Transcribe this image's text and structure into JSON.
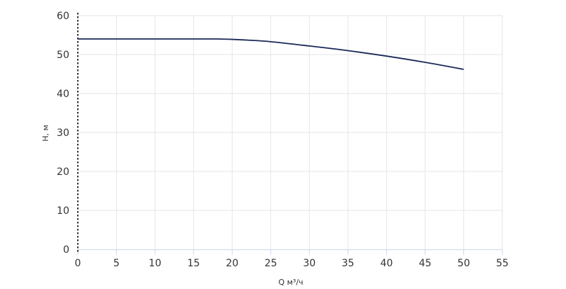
{
  "chart_data": {
    "type": "line",
    "title": "",
    "xlabel": "Q м³/ч",
    "ylabel": "H, м",
    "xlim": [
      0,
      55
    ],
    "ylim": [
      0,
      60
    ],
    "x_ticks": [
      "0",
      "5",
      "10",
      "15",
      "20",
      "25",
      "30",
      "35",
      "40",
      "45",
      "50",
      "55"
    ],
    "y_ticks": [
      "0",
      "10",
      "20",
      "30",
      "40",
      "50",
      "60"
    ],
    "grid": true,
    "legend": "none",
    "series": [
      {
        "color": "#1a2a57",
        "x": [
          0,
          5,
          10,
          15,
          18,
          20,
          22,
          25,
          30,
          35,
          40,
          45,
          50
        ],
        "y": [
          54,
          54,
          54,
          54,
          54,
          53.9,
          53.7,
          53.3,
          52.2,
          51.0,
          49.6,
          48.0,
          46.2
        ]
      }
    ]
  }
}
